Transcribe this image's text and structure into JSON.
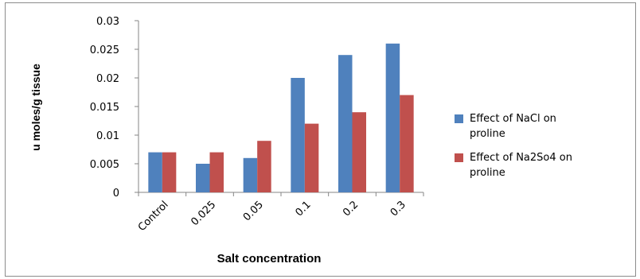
{
  "chart_data": {
    "type": "bar",
    "title": "",
    "xlabel": "Salt concentration",
    "ylabel": "u moles/g tissue",
    "categories": [
      "Control",
      "0.025",
      "0.05",
      "0.1",
      "0.2",
      "0.3"
    ],
    "ylim": [
      0,
      0.03
    ],
    "yticks": [
      "0",
      "0.005",
      "0.01",
      "0.015",
      "0.02",
      "0.025",
      "0.03"
    ],
    "grid": false,
    "legend_position": "right",
    "series": [
      {
        "name_lines": [
          "Effect of NaCl on",
          "proline"
        ],
        "color": "#4f81bd",
        "values": [
          0.007,
          0.005,
          0.006,
          0.02,
          0.024,
          0.026
        ]
      },
      {
        "name_lines": [
          "Effect of Na2So4 on",
          "proline"
        ],
        "color": "#c0504d",
        "values": [
          0.007,
          0.007,
          0.009,
          0.012,
          0.014,
          0.017
        ]
      }
    ]
  }
}
